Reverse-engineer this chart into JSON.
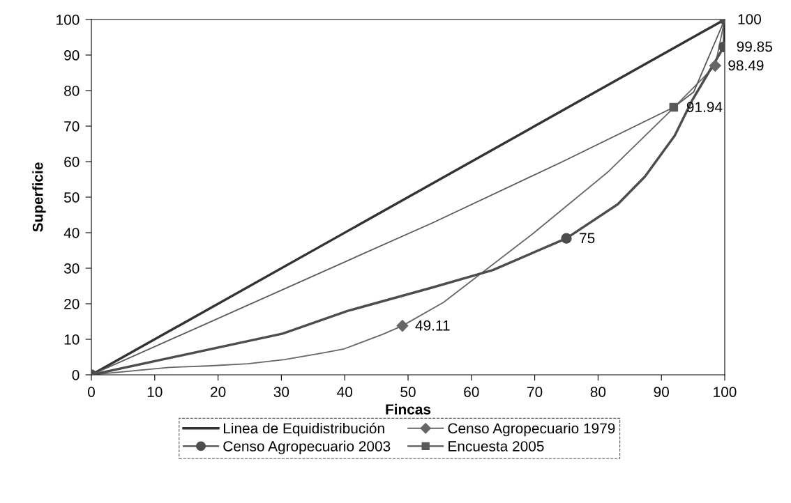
{
  "chart_data": {
    "type": "line",
    "xlabel": "Fincas",
    "ylabel": "Superficie",
    "xlim": [
      0,
      100
    ],
    "ylim": [
      0,
      100
    ],
    "xticks": [
      0,
      10,
      20,
      30,
      40,
      50,
      60,
      70,
      80,
      90,
      100
    ],
    "yticks": [
      0,
      10,
      20,
      30,
      40,
      50,
      60,
      70,
      80,
      90,
      100
    ],
    "grid": false,
    "legend": "bottom",
    "series": [
      {
        "name": "Linea de Equidistribución",
        "marker": "none",
        "color": "#333333",
        "x": [
          0,
          100
        ],
        "values": [
          0,
          100
        ]
      },
      {
        "marker": "none",
        "color": "#666666",
        "x": [
          0,
          12.3,
          18.4,
          24.7,
          30.5,
          36.7,
          39.9,
          46,
          49.11,
          55.6,
          69.7,
          81.5,
          91,
          98.49,
          100
        ],
        "values": [
          0,
          2.1,
          2.5,
          3.1,
          4.3,
          6.2,
          7.3,
          11.4,
          13.8,
          20.4,
          39.7,
          57,
          73.5,
          87,
          100
        ]
      },
      {
        "name": "Censo Agropecuario 1979",
        "type": "scatter",
        "marker": "diamond",
        "color": "#666666",
        "x": [
          49.11,
          98.49
        ],
        "values": [
          13.8,
          87
        ]
      },
      {
        "marker": "none",
        "color": "#4d4d4d",
        "x": [
          0,
          30.2,
          40.5,
          53.9,
          63.4,
          75,
          83.1,
          87.4,
          92.1,
          94.9,
          99.85,
          100
        ],
        "values": [
          0,
          11.6,
          18,
          24.6,
          29.5,
          38.4,
          48,
          55.8,
          67.3,
          77.4,
          92.3,
          100
        ]
      },
      {
        "name": "Censo Agropecuario 2003",
        "type": "scatter",
        "marker": "circle",
        "color": "#4d4d4d",
        "x": [
          0,
          75,
          99.85,
          100
        ],
        "values": [
          0,
          38.4,
          92.3,
          100
        ]
      },
      {
        "marker": "none",
        "color": "#595959",
        "x": [
          0,
          53.9,
          74.4,
          91.94,
          95.1,
          100
        ],
        "values": [
          0,
          42.8,
          60,
          75.3,
          79.6,
          100
        ]
      },
      {
        "name": "Encuesta 2005",
        "type": "scatter",
        "marker": "square",
        "color": "#595959",
        "x": [
          91.94
        ],
        "values": [
          75.3
        ]
      }
    ],
    "annotations": [
      {
        "text": "49.11",
        "x": 49.11,
        "y": 13.8
      },
      {
        "text": "75",
        "x": 75,
        "y": 38.4
      },
      {
        "text": "91.94",
        "x": 91.94,
        "y": 75.3
      },
      {
        "text": "98.49",
        "x": 98.49,
        "y": 87
      },
      {
        "text": "99.85",
        "x": 99.85,
        "y": 92.3
      },
      {
        "text": "100",
        "x": 100,
        "y": 100
      }
    ]
  }
}
